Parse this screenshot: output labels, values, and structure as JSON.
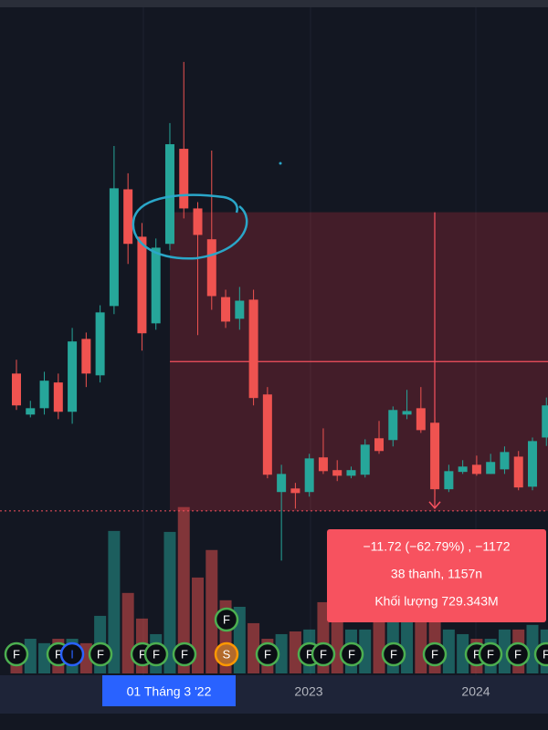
{
  "chart_data": {
    "type": "candlestick",
    "up_color": "#26a69a",
    "down_color": "#ef5350",
    "ylim": [
      0.5,
      27.0
    ],
    "vlim": [
      0,
      100
    ],
    "open": [
      12.34,
      10.73,
      10.98,
      11.99,
      10.84,
      13.7,
      12.27,
      14.99,
      19.57,
      17.71,
      14.31,
      17.43,
      21.16,
      18.82,
      17.61,
      15.34,
      14.49,
      15.24,
      11.52,
      7.69,
      7.83,
      7.69,
      9.05,
      8.55,
      8.33,
      8.37,
      9.8,
      9.73,
      10.73,
      10.98,
      10.41,
      7.8,
      8.48,
      8.76,
      8.4,
      8.58,
      9.08,
      7.9,
      9.83
    ],
    "high": [
      12.88,
      11.27,
      12.41,
      12.34,
      14.13,
      13.95,
      15.02,
      21.27,
      20.2,
      18.25,
      17.64,
      22.17,
      24.57,
      19.07,
      21.09,
      15.63,
      15.74,
      15.63,
      11.81,
      8.76,
      8.05,
      9.19,
      10.19,
      8.94,
      8.69,
      9.76,
      10.48,
      11.05,
      11.7,
      11.81,
      10.62,
      8.76,
      8.94,
      9.12,
      9.19,
      9.48,
      9.3,
      9.83,
      11.4
    ],
    "low": [
      10.91,
      10.62,
      10.73,
      10.55,
      10.37,
      11.81,
      11.99,
      14.67,
      16.64,
      13.24,
      14.06,
      17.18,
      18.43,
      13.85,
      14.84,
      14.13,
      14.06,
      11.09,
      8.23,
      5.0,
      7.04,
      7.51,
      8.4,
      8.12,
      8.23,
      8.26,
      9.19,
      9.48,
      10.55,
      10.01,
      7.51,
      7.69,
      8.4,
      8.33,
      8.4,
      8.4,
      7.76,
      7.76,
      9.5
    ],
    "close": [
      11.09,
      10.98,
      12.06,
      10.84,
      13.6,
      12.34,
      14.74,
      19.61,
      17.43,
      13.92,
      17.28,
      21.34,
      18.82,
      17.78,
      15.38,
      14.38,
      15.2,
      11.38,
      8.37,
      8.4,
      7.65,
      9.01,
      8.51,
      8.33,
      8.55,
      9.55,
      9.3,
      10.91,
      10.87,
      10.12,
      7.8,
      8.51,
      8.69,
      8.4,
      8.87,
      9.26,
      7.87,
      9.69,
      11.09
    ],
    "volume": [
      15.7,
      18.0,
      15.7,
      18.0,
      18.0,
      15.7,
      29.9,
      74.0,
      41.8,
      28.5,
      20.4,
      73.5,
      86.4,
      49.8,
      64.1,
      38.0,
      34.6,
      26.1,
      18.0,
      20.4,
      21.8,
      22.8,
      37.0,
      32.3,
      22.8,
      22.8,
      27.5,
      27.5,
      32.3,
      34.6,
      37.0,
      22.8,
      20.4,
      18.0,
      18.0,
      22.8,
      22.8,
      25.2,
      22.8
    ],
    "x_labels": [
      "01 Tháng 3 '22",
      "2023",
      "2024"
    ],
    "range": {
      "start": 18.67,
      "end": 6.95
    },
    "tooltip": [
      "−11.72 (−62.79%) , −1172",
      "38 thanh, 1157n",
      "Khối lượng 729.343M"
    ],
    "events": [
      "F",
      "F",
      "I",
      "F",
      "F",
      "F",
      "F",
      "S",
      "F",
      "F",
      "F",
      "F",
      "F",
      "F",
      "F",
      "F",
      "F",
      "F",
      "F"
    ]
  }
}
